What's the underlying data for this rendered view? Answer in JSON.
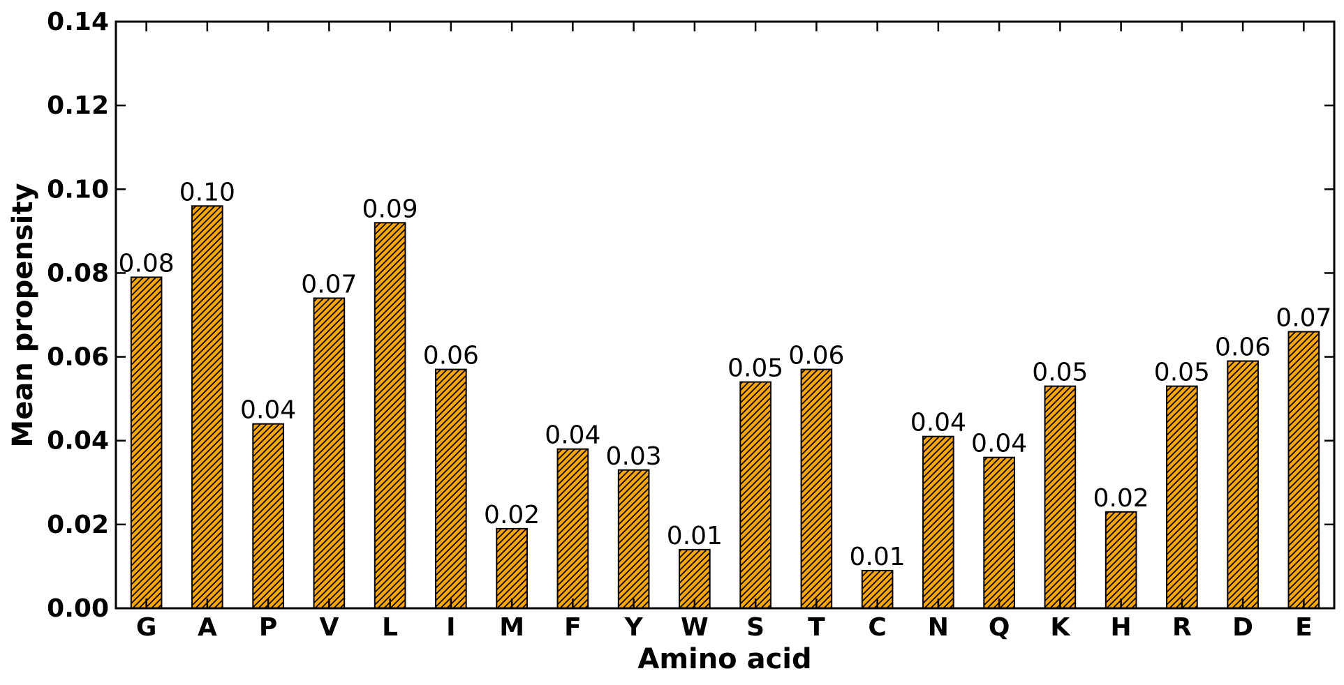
{
  "chart_data": {
    "type": "bar",
    "categories": [
      "G",
      "A",
      "P",
      "V",
      "L",
      "I",
      "M",
      "F",
      "Y",
      "W",
      "S",
      "T",
      "C",
      "N",
      "Q",
      "K",
      "H",
      "R",
      "D",
      "E"
    ],
    "values": [
      0.079,
      0.096,
      0.044,
      0.074,
      0.092,
      0.057,
      0.019,
      0.038,
      0.033,
      0.014,
      0.054,
      0.057,
      0.009,
      0.041,
      0.036,
      0.053,
      0.023,
      0.053,
      0.059,
      0.066
    ],
    "data_labels": [
      "0.08",
      "0.10",
      "0.04",
      "0.07",
      "0.09",
      "0.06",
      "0.02",
      "0.04",
      "0.03",
      "0.01",
      "0.05",
      "0.06",
      "0.01",
      "0.04",
      "0.04",
      "0.05",
      "0.02",
      "0.05",
      "0.06",
      "0.07"
    ],
    "yticks": [
      "0.00",
      "0.02",
      "0.04",
      "0.06",
      "0.08",
      "0.10",
      "0.12",
      "0.14"
    ],
    "ylim": [
      0,
      0.14
    ],
    "xlabel": "Amino acid",
    "ylabel": "Mean propensity",
    "bar_color": "#ffa500",
    "bar_hatch": "///",
    "grid": false
  }
}
